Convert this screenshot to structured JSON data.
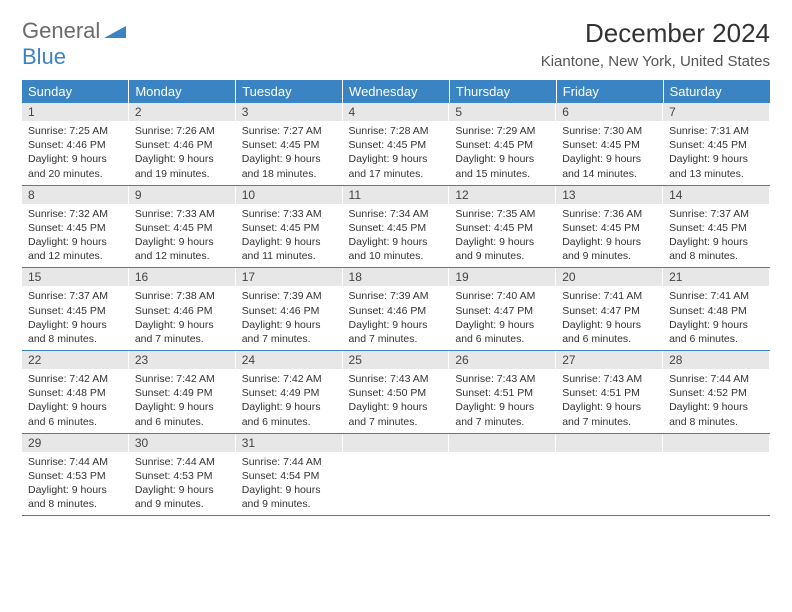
{
  "brand": {
    "general": "General",
    "blue": "Blue"
  },
  "title": "December 2024",
  "location": "Kiantone, New York, United States",
  "colors": {
    "header_bg": "#3a84c4",
    "daynum_bg": "#e7e7e7",
    "border": "#3a84c4",
    "text": "#333333"
  },
  "weekdays": [
    "Sunday",
    "Monday",
    "Tuesday",
    "Wednesday",
    "Thursday",
    "Friday",
    "Saturday"
  ],
  "weeks": [
    [
      {
        "n": "1",
        "sr": "7:25 AM",
        "ss": "4:46 PM",
        "dl": "9 hours and 20 minutes."
      },
      {
        "n": "2",
        "sr": "7:26 AM",
        "ss": "4:46 PM",
        "dl": "9 hours and 19 minutes."
      },
      {
        "n": "3",
        "sr": "7:27 AM",
        "ss": "4:45 PM",
        "dl": "9 hours and 18 minutes."
      },
      {
        "n": "4",
        "sr": "7:28 AM",
        "ss": "4:45 PM",
        "dl": "9 hours and 17 minutes."
      },
      {
        "n": "5",
        "sr": "7:29 AM",
        "ss": "4:45 PM",
        "dl": "9 hours and 15 minutes."
      },
      {
        "n": "6",
        "sr": "7:30 AM",
        "ss": "4:45 PM",
        "dl": "9 hours and 14 minutes."
      },
      {
        "n": "7",
        "sr": "7:31 AM",
        "ss": "4:45 PM",
        "dl": "9 hours and 13 minutes."
      }
    ],
    [
      {
        "n": "8",
        "sr": "7:32 AM",
        "ss": "4:45 PM",
        "dl": "9 hours and 12 minutes."
      },
      {
        "n": "9",
        "sr": "7:33 AM",
        "ss": "4:45 PM",
        "dl": "9 hours and 12 minutes."
      },
      {
        "n": "10",
        "sr": "7:33 AM",
        "ss": "4:45 PM",
        "dl": "9 hours and 11 minutes."
      },
      {
        "n": "11",
        "sr": "7:34 AM",
        "ss": "4:45 PM",
        "dl": "9 hours and 10 minutes."
      },
      {
        "n": "12",
        "sr": "7:35 AM",
        "ss": "4:45 PM",
        "dl": "9 hours and 9 minutes."
      },
      {
        "n": "13",
        "sr": "7:36 AM",
        "ss": "4:45 PM",
        "dl": "9 hours and 9 minutes."
      },
      {
        "n": "14",
        "sr": "7:37 AM",
        "ss": "4:45 PM",
        "dl": "9 hours and 8 minutes."
      }
    ],
    [
      {
        "n": "15",
        "sr": "7:37 AM",
        "ss": "4:45 PM",
        "dl": "9 hours and 8 minutes."
      },
      {
        "n": "16",
        "sr": "7:38 AM",
        "ss": "4:46 PM",
        "dl": "9 hours and 7 minutes."
      },
      {
        "n": "17",
        "sr": "7:39 AM",
        "ss": "4:46 PM",
        "dl": "9 hours and 7 minutes."
      },
      {
        "n": "18",
        "sr": "7:39 AM",
        "ss": "4:46 PM",
        "dl": "9 hours and 7 minutes."
      },
      {
        "n": "19",
        "sr": "7:40 AM",
        "ss": "4:47 PM",
        "dl": "9 hours and 6 minutes."
      },
      {
        "n": "20",
        "sr": "7:41 AM",
        "ss": "4:47 PM",
        "dl": "9 hours and 6 minutes."
      },
      {
        "n": "21",
        "sr": "7:41 AM",
        "ss": "4:48 PM",
        "dl": "9 hours and 6 minutes."
      }
    ],
    [
      {
        "n": "22",
        "sr": "7:42 AM",
        "ss": "4:48 PM",
        "dl": "9 hours and 6 minutes."
      },
      {
        "n": "23",
        "sr": "7:42 AM",
        "ss": "4:49 PM",
        "dl": "9 hours and 6 minutes."
      },
      {
        "n": "24",
        "sr": "7:42 AM",
        "ss": "4:49 PM",
        "dl": "9 hours and 6 minutes."
      },
      {
        "n": "25",
        "sr": "7:43 AM",
        "ss": "4:50 PM",
        "dl": "9 hours and 7 minutes."
      },
      {
        "n": "26",
        "sr": "7:43 AM",
        "ss": "4:51 PM",
        "dl": "9 hours and 7 minutes."
      },
      {
        "n": "27",
        "sr": "7:43 AM",
        "ss": "4:51 PM",
        "dl": "9 hours and 7 minutes."
      },
      {
        "n": "28",
        "sr": "7:44 AM",
        "ss": "4:52 PM",
        "dl": "9 hours and 8 minutes."
      }
    ],
    [
      {
        "n": "29",
        "sr": "7:44 AM",
        "ss": "4:53 PM",
        "dl": "9 hours and 8 minutes."
      },
      {
        "n": "30",
        "sr": "7:44 AM",
        "ss": "4:53 PM",
        "dl": "9 hours and 9 minutes."
      },
      {
        "n": "31",
        "sr": "7:44 AM",
        "ss": "4:54 PM",
        "dl": "9 hours and 9 minutes."
      },
      null,
      null,
      null,
      null
    ]
  ],
  "labels": {
    "sunrise": "Sunrise:",
    "sunset": "Sunset:",
    "daylight": "Daylight:"
  }
}
